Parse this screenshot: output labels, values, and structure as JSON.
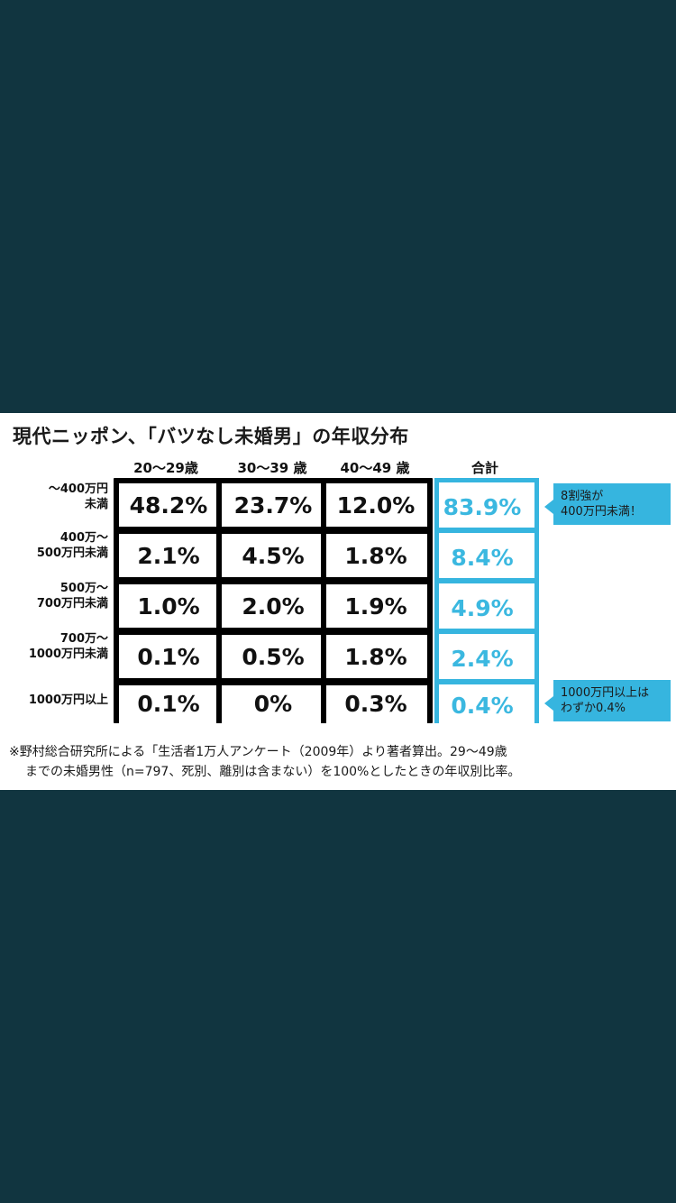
{
  "chart_data": {
    "type": "table",
    "title": "現代ニッポン、「バツなし未婚男」の年収分布",
    "columns": [
      "20〜29歳",
      "30〜39 歳",
      "40〜49 歳",
      "合計"
    ],
    "rows": [
      {
        "label_line1": "〜400万円",
        "label_line2": "未満",
        "values": [
          "48.2%",
          "23.7%",
          "12.0%"
        ],
        "total": "83.9%"
      },
      {
        "label_line1": "400万〜",
        "label_line2": "500万円未満",
        "values": [
          "2.1%",
          "4.5%",
          "1.8%"
        ],
        "total": "8.4%"
      },
      {
        "label_line1": "500万〜",
        "label_line2": "700万円未満",
        "values": [
          "1.0%",
          "2.0%",
          "1.9%"
        ],
        "total": "4.9%"
      },
      {
        "label_line1": "700万〜",
        "label_line2": "1000万円未満",
        "values": [
          "0.1%",
          "0.5%",
          "1.8%"
        ],
        "total": "2.4%"
      },
      {
        "label_line1": "1000万円以上",
        "label_line2": "",
        "values": [
          "0.1%",
          "0%",
          "0.3%"
        ],
        "total": "0.4%"
      }
    ],
    "callouts": [
      {
        "line1": "8割強が",
        "line2": "400万円未満！"
      },
      {
        "line1": "1000万円以上は",
        "line2": "わずか0.4%"
      }
    ],
    "note_line1": "※野村総合研究所による「生活者1万人アンケート（2009年）より著者算出。29〜49歳",
    "note_line2": "までの未婚男性（n=797、死別、離別は含まない）を100%としたときの年収別比率。"
  },
  "colors": {
    "background": "#113540",
    "card": "#ffffff",
    "accent": "#36b5df",
    "total_text": "#3bb8e0"
  }
}
